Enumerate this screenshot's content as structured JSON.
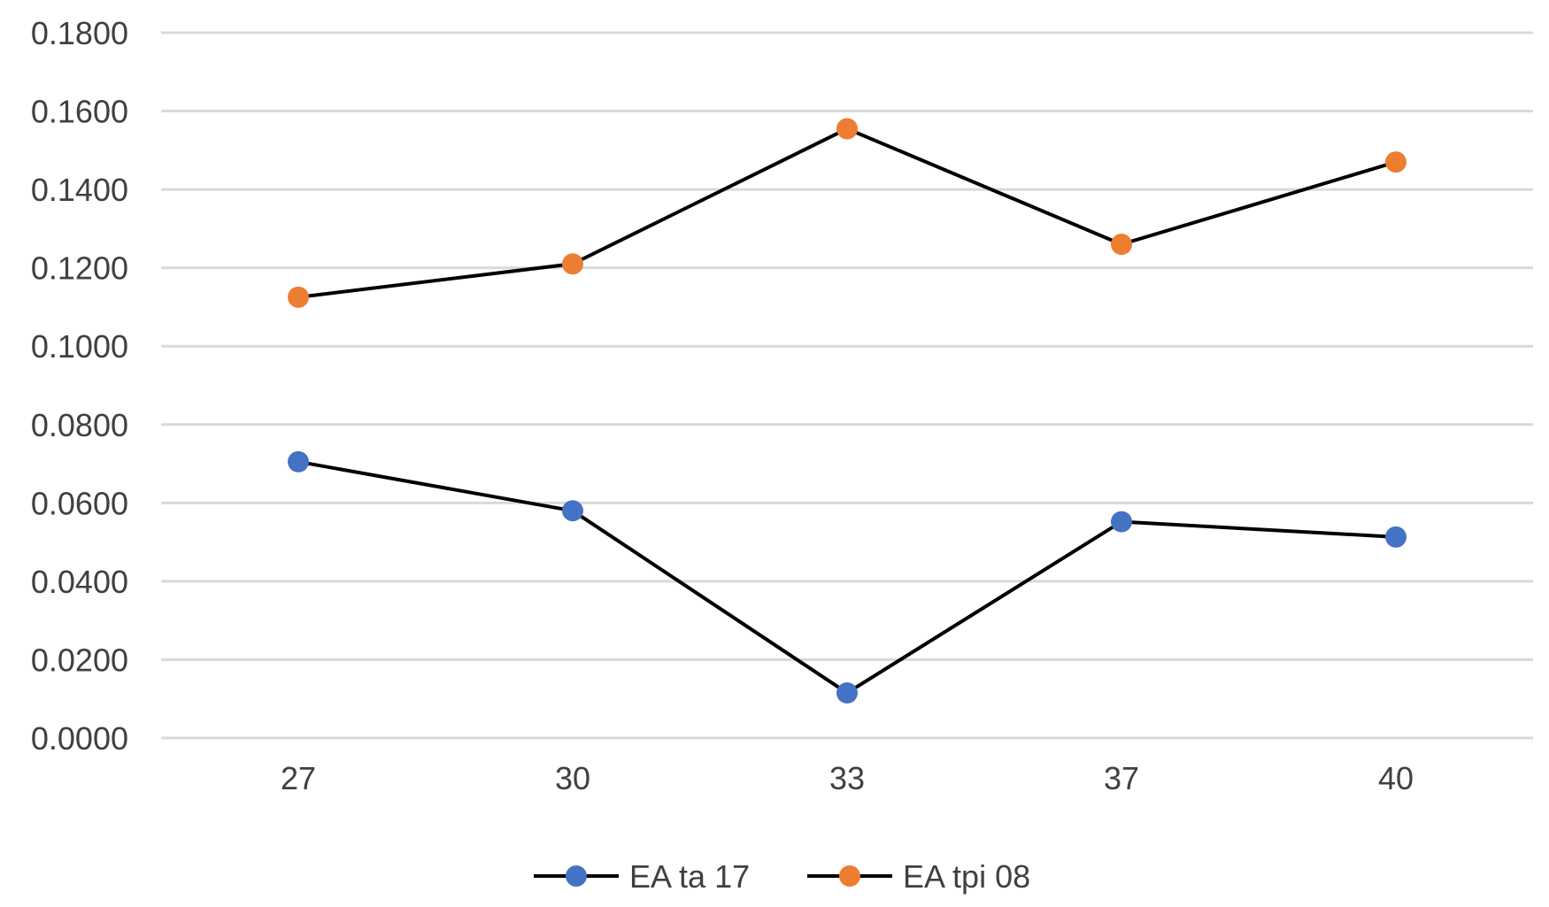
{
  "chart_data": {
    "type": "line",
    "categories": [
      "27",
      "30",
      "33",
      "37",
      "40"
    ],
    "series": [
      {
        "name": "EA ta 17",
        "values": [
          0.0705,
          0.058,
          0.0115,
          0.0552,
          0.0513
        ],
        "marker_color": "#4472C4",
        "line_color": "#000000"
      },
      {
        "name": "EA tpi 08",
        "values": [
          0.1125,
          0.121,
          0.1555,
          0.126,
          0.147
        ],
        "marker_color": "#ED7D31",
        "line_color": "#000000"
      }
    ],
    "y_ticks": [
      "0.0000",
      "0.0200",
      "0.0400",
      "0.0600",
      "0.0800",
      "0.1000",
      "0.1200",
      "0.1400",
      "0.1600",
      "0.1800"
    ],
    "ylim": [
      0,
      0.18
    ],
    "grid": true,
    "gridline_color": "#D9D9D9",
    "legend_position": "bottom",
    "title": "",
    "xlabel": "",
    "ylabel": ""
  }
}
